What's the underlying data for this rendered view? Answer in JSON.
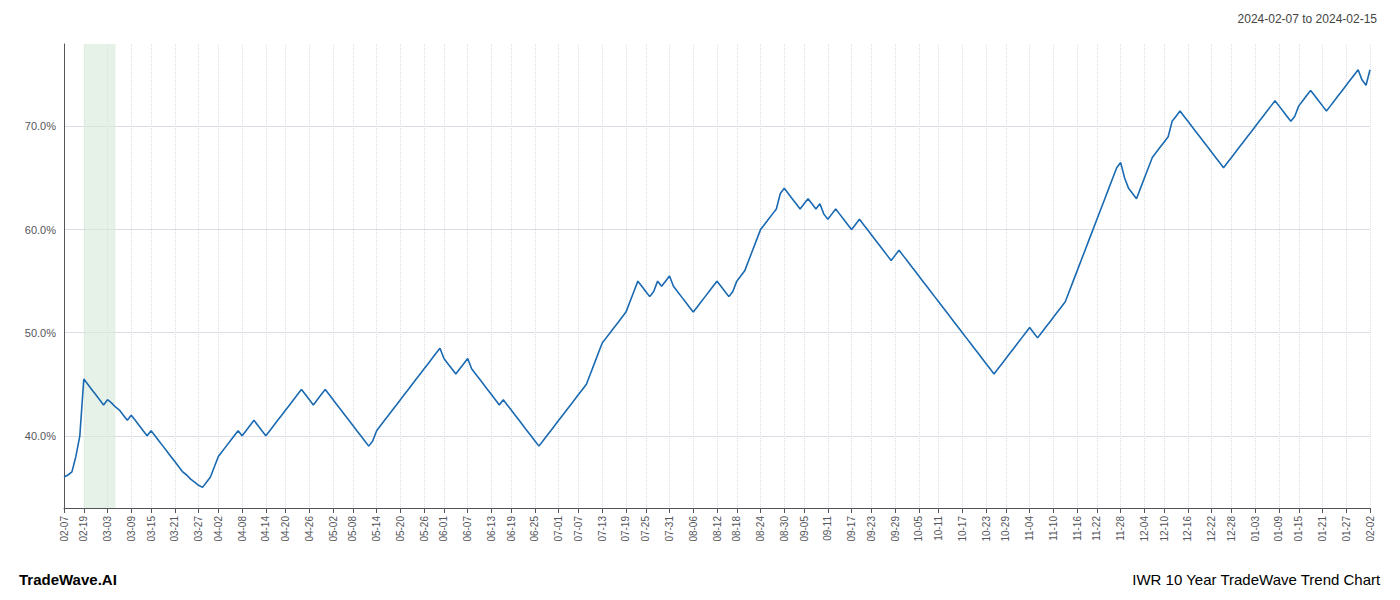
{
  "chart_data": {
    "type": "line",
    "title": "IWR 10 Year TradeWave Trend Chart",
    "subtitle": "2024-02-07 to 2024-02-15",
    "annotations": [
      "TradeWave.AI"
    ],
    "color": "#1a6ab1",
    "grid": true,
    "highlight": {
      "start": 5,
      "end": 13,
      "color": "#d6ead8"
    },
    "ylim": [
      33,
      78
    ],
    "yticks": [
      {
        "value": 40.0,
        "label": "40.0%"
      },
      {
        "value": 50.0,
        "label": "50.0%"
      },
      {
        "value": 60.0,
        "label": "60.0%"
      },
      {
        "value": 70.0,
        "label": "70.0%"
      }
    ],
    "categories": [
      "02-07",
      null,
      null,
      null,
      null,
      "02-19",
      null,
      null,
      null,
      null,
      null,
      "03-03",
      null,
      null,
      null,
      null,
      null,
      "03-09",
      null,
      null,
      null,
      null,
      "03-15",
      null,
      null,
      null,
      null,
      null,
      "03-21",
      null,
      null,
      null,
      null,
      null,
      "03-27",
      null,
      null,
      null,
      null,
      "04-02",
      null,
      null,
      null,
      null,
      null,
      "04-08",
      null,
      null,
      null,
      null,
      null,
      "04-14",
      null,
      null,
      null,
      null,
      "04-20",
      null,
      null,
      null,
      null,
      null,
      "04-26",
      null,
      null,
      null,
      null,
      null,
      "05-02",
      null,
      null,
      null,
      null,
      "05-08",
      null,
      null,
      null,
      null,
      null,
      "05-14",
      null,
      null,
      null,
      null,
      null,
      "05-20",
      null,
      null,
      null,
      null,
      null,
      "05-26",
      null,
      null,
      null,
      null,
      "06-01",
      null,
      null,
      null,
      null,
      null,
      "06-07",
      null,
      null,
      null,
      null,
      null,
      "06-13",
      null,
      null,
      null,
      null,
      "06-19",
      null,
      null,
      null,
      null,
      null,
      "06-25",
      null,
      null,
      null,
      null,
      null,
      "07-01",
      null,
      null,
      null,
      null,
      "07-07",
      null,
      null,
      null,
      null,
      null,
      "07-13",
      null,
      null,
      null,
      null,
      null,
      "07-19",
      null,
      null,
      null,
      null,
      "07-25",
      null,
      null,
      null,
      null,
      null,
      "07-31",
      null,
      null,
      null,
      null,
      null,
      "08-06",
      null,
      null,
      null,
      null,
      null,
      "08-12",
      null,
      null,
      null,
      null,
      "08-18",
      null,
      null,
      null,
      null,
      null,
      "08-24",
      null,
      null,
      null,
      null,
      null,
      "08-30",
      null,
      null,
      null,
      null,
      "09-05",
      null,
      null,
      null,
      null,
      null,
      "09-11",
      null,
      null,
      null,
      null,
      null,
      "09-17",
      null,
      null,
      null,
      null,
      "09-23",
      null,
      null,
      null,
      null,
      null,
      "09-29",
      null,
      null,
      null,
      null,
      null,
      "10-05",
      null,
      null,
      null,
      null,
      "10-11",
      null,
      null,
      null,
      null,
      null,
      "10-17",
      null,
      null,
      null,
      null,
      null,
      "10-23",
      null,
      null,
      null,
      null,
      "10-29",
      null,
      null,
      null,
      null,
      null,
      "11-04",
      null,
      null,
      null,
      null,
      null,
      "11-10",
      null,
      null,
      null,
      null,
      null,
      "11-16",
      null,
      null,
      null,
      null,
      "11-22",
      null,
      null,
      null,
      null,
      null,
      "11-28",
      null,
      null,
      null,
      null,
      null,
      "12-04",
      null,
      null,
      null,
      null,
      "12-10",
      null,
      null,
      null,
      null,
      null,
      "12-16",
      null,
      null,
      null,
      null,
      null,
      "12-22",
      null,
      null,
      null,
      null,
      "12-28",
      null,
      null,
      null,
      null,
      null,
      "01-03",
      null,
      null,
      null,
      null,
      null,
      "01-09",
      null,
      null,
      null,
      null,
      "01-15",
      null,
      null,
      null,
      null,
      null,
      "01-21",
      null,
      null,
      null,
      null,
      null,
      "01-27",
      null,
      null,
      null,
      null,
      null,
      "02-02"
    ],
    "values": [
      36.0,
      36.2,
      36.5,
      38.0,
      40.0,
      45.5,
      45.0,
      44.5,
      44.0,
      43.5,
      43.0,
      43.5,
      43.2,
      42.8,
      42.5,
      42.0,
      41.5,
      42.0,
      41.5,
      41.0,
      40.5,
      40.0,
      40.5,
      40.0,
      39.5,
      39.0,
      38.5,
      38.0,
      37.5,
      37.0,
      36.5,
      36.2,
      35.8,
      35.5,
      35.2,
      35.0,
      35.5,
      36.0,
      37.0,
      38.0,
      38.5,
      39.0,
      39.5,
      40.0,
      40.5,
      40.0,
      40.5,
      41.0,
      41.5,
      41.0,
      40.5,
      40.0,
      40.5,
      41.0,
      41.5,
      42.0,
      42.5,
      43.0,
      43.5,
      44.0,
      44.5,
      44.0,
      43.5,
      43.0,
      43.5,
      44.0,
      44.5,
      44.0,
      43.5,
      43.0,
      42.5,
      42.0,
      41.5,
      41.0,
      40.5,
      40.0,
      39.5,
      39.0,
      39.5,
      40.5,
      41.0,
      41.5,
      42.0,
      42.5,
      43.0,
      43.5,
      44.0,
      44.5,
      45.0,
      45.5,
      46.0,
      46.5,
      47.0,
      47.5,
      48.0,
      48.5,
      47.5,
      47.0,
      46.5,
      46.0,
      46.5,
      47.0,
      47.5,
      46.5,
      46.0,
      45.5,
      45.0,
      44.5,
      44.0,
      43.5,
      43.0,
      43.5,
      43.0,
      42.5,
      42.0,
      41.5,
      41.0,
      40.5,
      40.0,
      39.5,
      39.0,
      39.5,
      40.0,
      40.5,
      41.0,
      41.5,
      42.0,
      42.5,
      43.0,
      43.5,
      44.0,
      44.5,
      45.0,
      46.0,
      47.0,
      48.0,
      49.0,
      49.5,
      50.0,
      50.5,
      51.0,
      51.5,
      52.0,
      53.0,
      54.0,
      55.0,
      54.5,
      54.0,
      53.5,
      54.0,
      55.0,
      54.5,
      55.0,
      55.5,
      54.5,
      54.0,
      53.5,
      53.0,
      52.5,
      52.0,
      52.5,
      53.0,
      53.5,
      54.0,
      54.5,
      55.0,
      54.5,
      54.0,
      53.5,
      54.0,
      55.0,
      55.5,
      56.0,
      57.0,
      58.0,
      59.0,
      60.0,
      60.5,
      61.0,
      61.5,
      62.0,
      63.5,
      64.0,
      63.5,
      63.0,
      62.5,
      62.0,
      62.5,
      63.0,
      62.5,
      62.0,
      62.5,
      61.5,
      61.0,
      61.5,
      62.0,
      61.5,
      61.0,
      60.5,
      60.0,
      60.5,
      61.0,
      60.5,
      60.0,
      59.5,
      59.0,
      58.5,
      58.0,
      57.5,
      57.0,
      57.5,
      58.0,
      57.5,
      57.0,
      56.5,
      56.0,
      55.5,
      55.0,
      54.5,
      54.0,
      53.5,
      53.0,
      52.5,
      52.0,
      51.5,
      51.0,
      50.5,
      50.0,
      49.5,
      49.0,
      48.5,
      48.0,
      47.5,
      47.0,
      46.5,
      46.0,
      46.5,
      47.0,
      47.5,
      48.0,
      48.5,
      49.0,
      49.5,
      50.0,
      50.5,
      50.0,
      49.5,
      50.0,
      50.5,
      51.0,
      51.5,
      52.0,
      52.5,
      53.0,
      54.0,
      55.0,
      56.0,
      57.0,
      58.0,
      59.0,
      60.0,
      61.0,
      62.0,
      63.0,
      64.0,
      65.0,
      66.0,
      66.5,
      65.0,
      64.0,
      63.5,
      63.0,
      64.0,
      65.0,
      66.0,
      67.0,
      67.5,
      68.0,
      68.5,
      69.0,
      70.5,
      71.0,
      71.5,
      71.0,
      70.5,
      70.0,
      69.5,
      69.0,
      68.5,
      68.0,
      67.5,
      67.0,
      66.5,
      66.0,
      66.5,
      67.0,
      67.5,
      68.0,
      68.5,
      69.0,
      69.5,
      70.0,
      70.5,
      71.0,
      71.5,
      72.0,
      72.5,
      72.0,
      71.5,
      71.0,
      70.5,
      71.0,
      72.0,
      72.5,
      73.0,
      73.5,
      73.0,
      72.5,
      72.0,
      71.5,
      72.0,
      72.5,
      73.0,
      73.5,
      74.0,
      74.5,
      75.0,
      75.5,
      74.5,
      74.0,
      75.5
    ]
  }
}
